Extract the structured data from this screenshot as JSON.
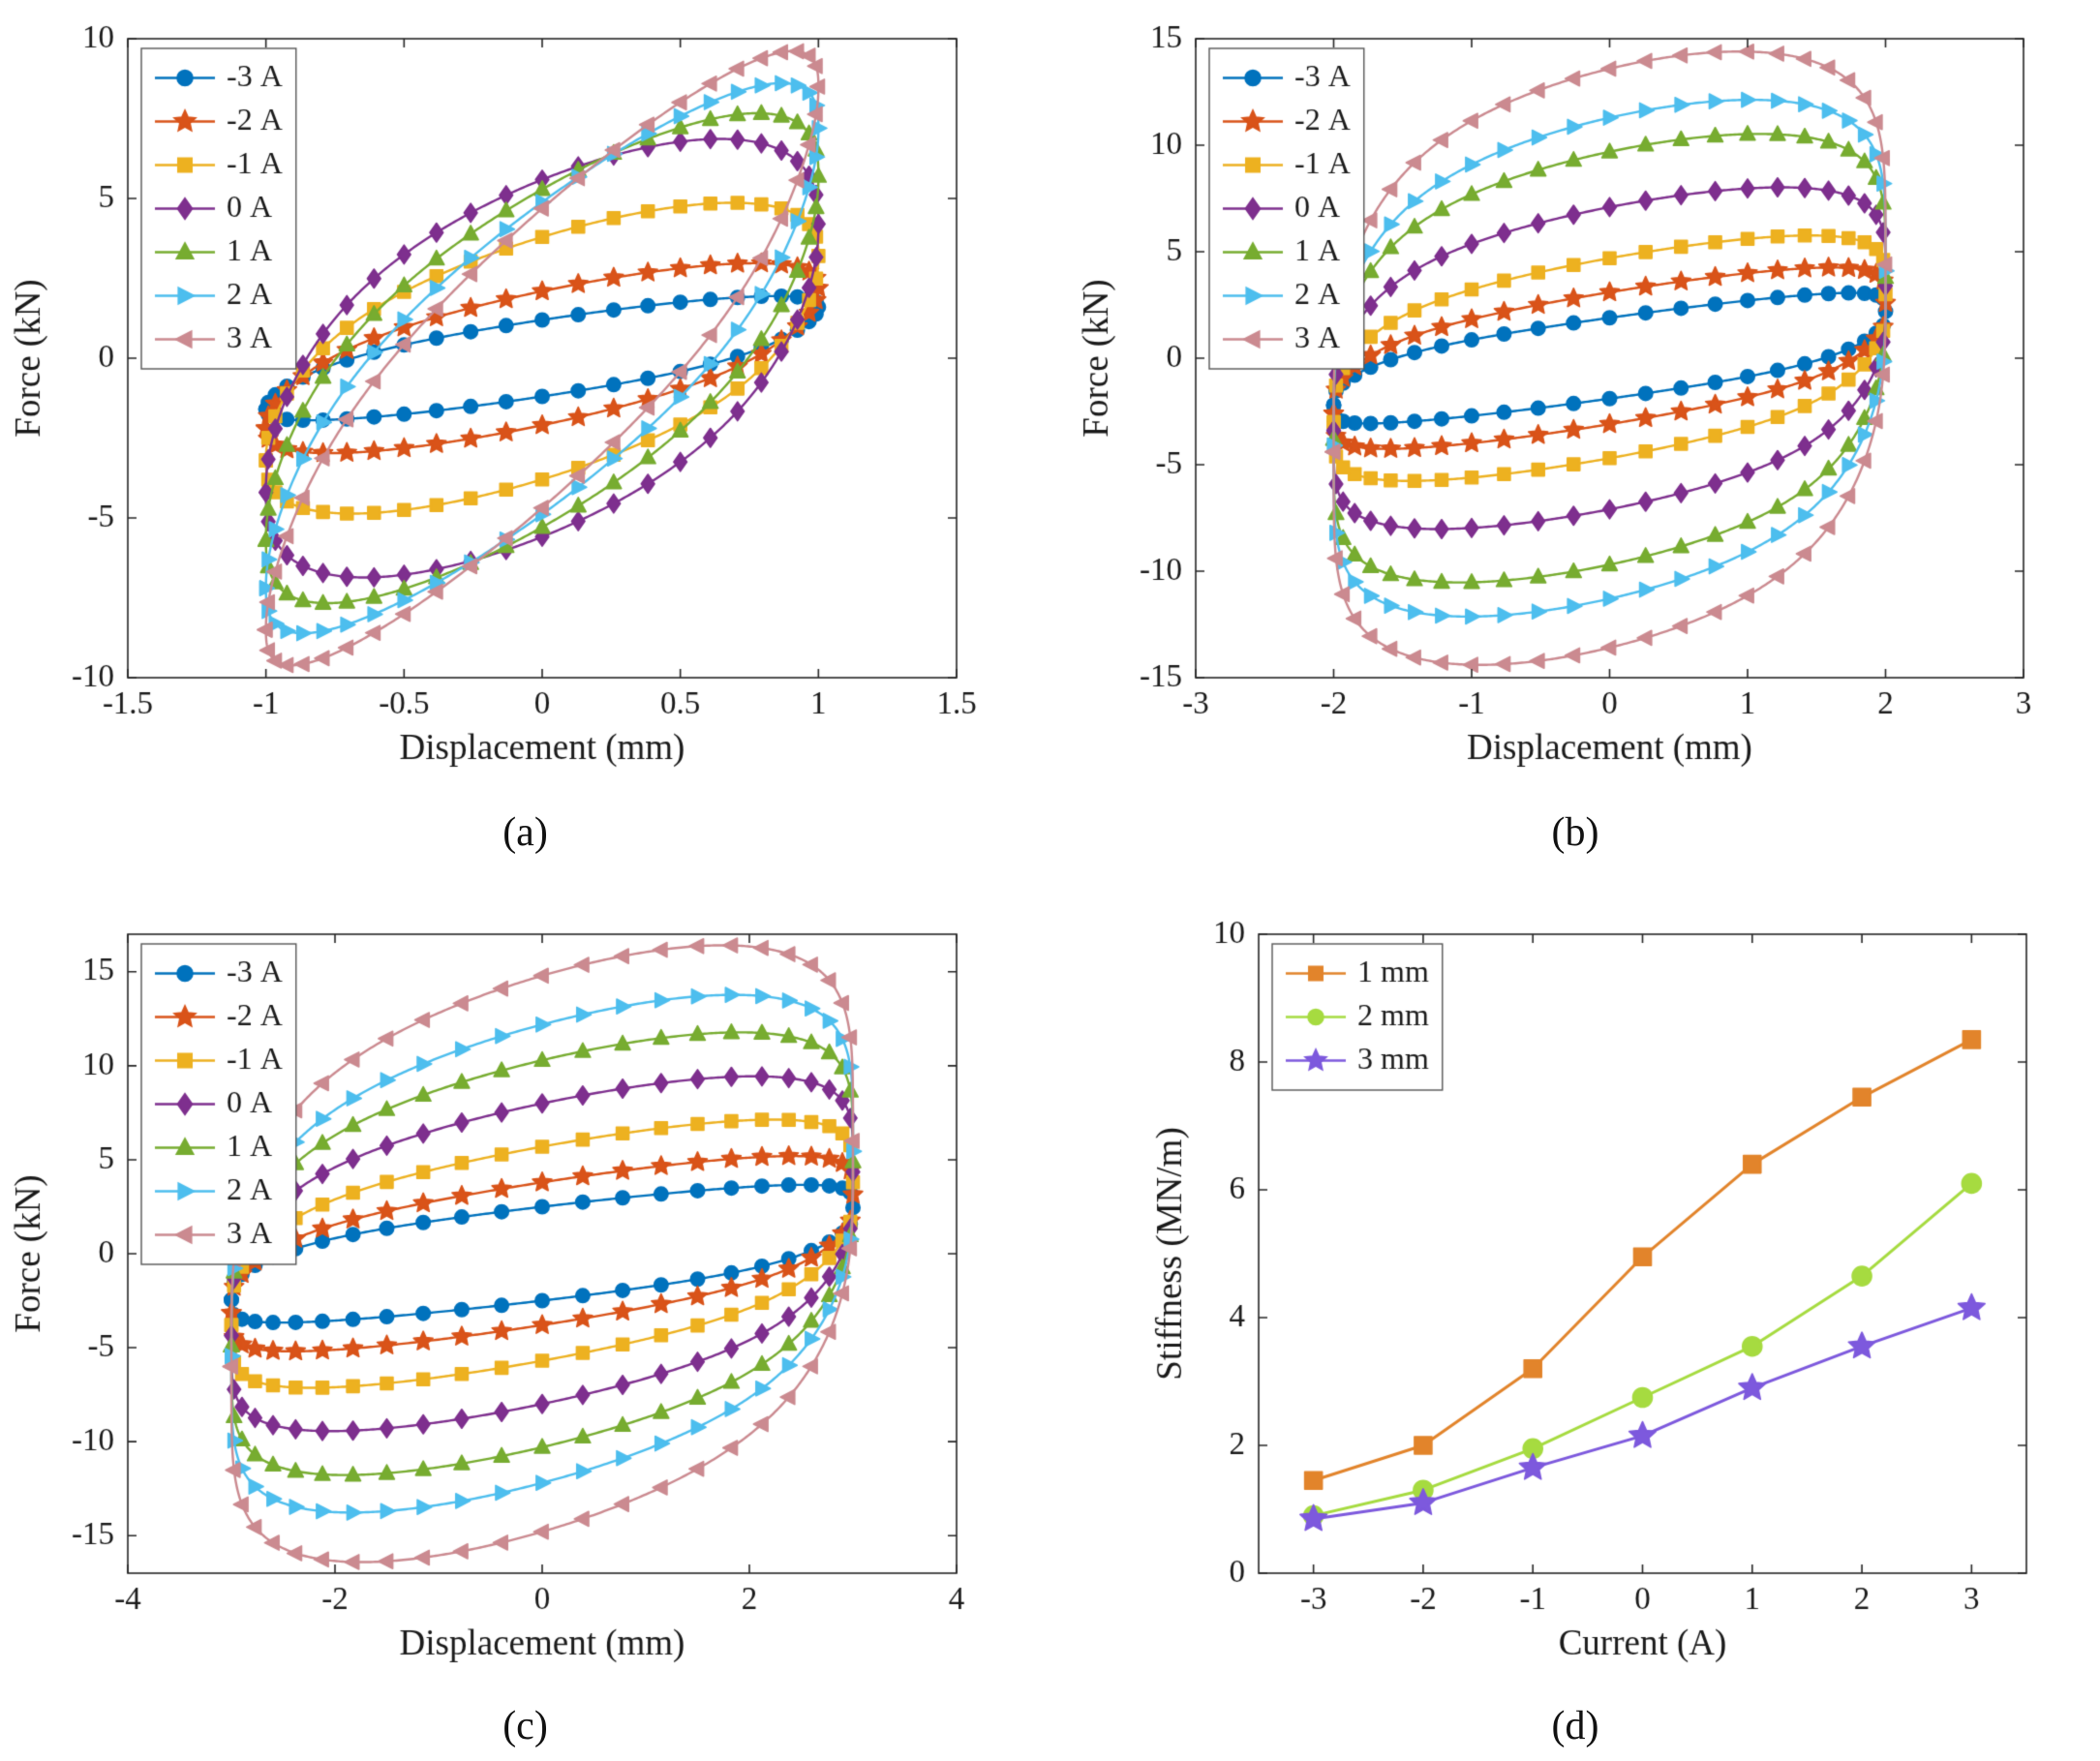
{
  "captions": {
    "a": "(a)",
    "b": "(b)",
    "c": "(c)",
    "d": "(d)"
  },
  "chart_data": [
    {
      "id": "a",
      "type": "line",
      "subtype": "force-displacement-hysteresis-loops",
      "panel_letter": "(a)",
      "xlabel": "Displacement (mm)",
      "ylabel": "Force (kN)",
      "xlim": [
        -1.5,
        1.5
      ],
      "ylim": [
        -10,
        10
      ],
      "xticks": [
        -1.5,
        -1,
        -0.5,
        0,
        0.5,
        1,
        1.5
      ],
      "xtick_labels": [
        "-1.5",
        "-1",
        "-0.5",
        "0",
        "0.5",
        "1",
        "1.5"
      ],
      "yticks": [
        -10,
        -5,
        0,
        5,
        10
      ],
      "ytick_labels": [
        "-10",
        "-5",
        "0",
        "5",
        "10"
      ],
      "grid": false,
      "legend_location": "northwest",
      "displacement_amplitude_mm": 1,
      "marker_size": 7.2,
      "line_width": 2.4,
      "series": [
        {
          "label": "-3 A",
          "current_A": -3,
          "color": "#0072BD",
          "marker": "circle",
          "max_force_kN": 1.8,
          "loop": {
            "amplitude": 1,
            "k": 1.3,
            "fz": 0.3,
            "fc": 0.9,
            "w": 0.18,
            "p": 0.4
          }
        },
        {
          "label": "-2 A",
          "current_A": -2,
          "color": "#D95319",
          "marker": "star",
          "max_force_kN": 2.6,
          "loop": {
            "amplitude": 1,
            "k": 1.8,
            "fz": 0.4,
            "fc": 1.7,
            "w": 0.18,
            "p": 0.4
          }
        },
        {
          "label": "-1 A",
          "current_A": -1,
          "color": "#EDB120",
          "marker": "square",
          "max_force_kN": 4.4,
          "loop": {
            "amplitude": 1,
            "k": 2.6,
            "fz": 0.6,
            "fc": 3.2,
            "w": 0.18,
            "p": 0.4
          }
        },
        {
          "label": "0 A",
          "current_A": 0,
          "color": "#7E2F8E",
          "marker": "diamond",
          "max_force_kN": 5.9,
          "loop": {
            "amplitude": 1,
            "k": 3.4,
            "fz": 0.8,
            "fc": 4.8,
            "w": 0.2,
            "p": 0.4
          }
        },
        {
          "label": "1 A",
          "current_A": 1,
          "color": "#77AC30",
          "marker": "triangle-up",
          "max_force_kN": 7.0,
          "loop": {
            "amplitude": 1,
            "k": 4.8,
            "fz": 0.9,
            "fc": 4.4,
            "w": 0.2,
            "p": 0.4
          }
        },
        {
          "label": "2 A",
          "current_A": 2,
          "color": "#4DBEEE",
          "marker": "triangle-right",
          "max_force_kN": 8.2,
          "loop": {
            "amplitude": 1,
            "k": 6.2,
            "fz": 1.0,
            "fc": 3.9,
            "w": 0.2,
            "p": 0.4
          }
        },
        {
          "label": "3 A",
          "current_A": 3,
          "color": "#CB8A90",
          "marker": "triangle-left",
          "max_force_kN": 9.2,
          "loop": {
            "amplitude": 1,
            "k": 7.4,
            "fz": 1.1,
            "fc": 3.6,
            "w": 0.2,
            "p": 0.4
          }
        }
      ]
    },
    {
      "id": "b",
      "type": "line",
      "subtype": "force-displacement-hysteresis-loops",
      "panel_letter": "(b)",
      "xlabel": "Displacement (mm)",
      "ylabel": "Force (kN)",
      "xlim": [
        -3,
        3
      ],
      "ylim": [
        -15,
        15
      ],
      "xticks": [
        -3,
        -2,
        -1,
        0,
        1,
        2,
        3
      ],
      "xtick_labels": [
        "-3",
        "-2",
        "-1",
        "0",
        "1",
        "2",
        "3"
      ],
      "yticks": [
        -15,
        -10,
        -5,
        0,
        5,
        10,
        15
      ],
      "ytick_labels": [
        "-15",
        "-10",
        "-5",
        "0",
        "5",
        "10",
        "15"
      ],
      "grid": false,
      "legend_location": "northwest",
      "displacement_amplitude_mm": 2,
      "marker_size": 7.2,
      "line_width": 2.4,
      "series": [
        {
          "label": "-3 A",
          "current_A": -3,
          "color": "#0072BD",
          "marker": "circle",
          "max_force_kN": 2.3,
          "loop": {
            "amplitude": 2,
            "k": 0.9,
            "fz": 0.4,
            "fc": 1.5,
            "w": 0.35,
            "p": 0.22
          }
        },
        {
          "label": "-2 A",
          "current_A": -2,
          "color": "#D95319",
          "marker": "star",
          "max_force_kN": 3.3,
          "loop": {
            "amplitude": 2,
            "k": 1.05,
            "fz": 0.5,
            "fc": 2.6,
            "w": 0.35,
            "p": 0.22
          }
        },
        {
          "label": "-1 A",
          "current_A": -1,
          "color": "#EDB120",
          "marker": "square",
          "max_force_kN": 4.8,
          "loop": {
            "amplitude": 2,
            "k": 1.15,
            "fz": 0.7,
            "fc": 4.0,
            "w": 0.35,
            "p": 0.22
          }
        },
        {
          "label": "0 A",
          "current_A": 0,
          "color": "#7E2F8E",
          "marker": "diamond",
          "max_force_kN": 7.2,
          "loop": {
            "amplitude": 2,
            "k": 1.25,
            "fz": 0.9,
            "fc": 6.2,
            "w": 0.35,
            "p": 0.22
          }
        },
        {
          "label": "1 A",
          "current_A": 1,
          "color": "#77AC30",
          "marker": "triangle-up",
          "max_force_kN": 9.8,
          "loop": {
            "amplitude": 2,
            "k": 1.35,
            "fz": 1.1,
            "fc": 8.6,
            "w": 0.35,
            "p": 0.22
          }
        },
        {
          "label": "2 A",
          "current_A": 2,
          "color": "#4DBEEE",
          "marker": "triangle-right",
          "max_force_kN": 11.3,
          "loop": {
            "amplitude": 2,
            "k": 1.45,
            "fz": 1.2,
            "fc": 10.1,
            "w": 0.35,
            "p": 0.22
          }
        },
        {
          "label": "3 A",
          "current_A": 3,
          "color": "#CB8A90",
          "marker": "triangle-left",
          "max_force_kN": 13.6,
          "loop": {
            "amplitude": 2,
            "k": 1.55,
            "fz": 1.3,
            "fc": 12.3,
            "w": 0.35,
            "p": 0.22
          }
        }
      ]
    },
    {
      "id": "c",
      "type": "line",
      "subtype": "force-displacement-hysteresis-loops",
      "panel_letter": "(c)",
      "xlabel": "Displacement (mm)",
      "ylabel": "Force (kN)",
      "xlim": [
        -4,
        4
      ],
      "ylim": [
        -17,
        17
      ],
      "xticks": [
        -4,
        -2,
        0,
        2,
        4
      ],
      "xtick_labels": [
        "-4",
        "-2",
        "0",
        "2",
        "4"
      ],
      "yticks": [
        -15,
        -10,
        -5,
        0,
        5,
        10,
        15
      ],
      "ytick_labels": [
        "-15",
        "-10",
        "-5",
        "0",
        "5",
        "10",
        "15"
      ],
      "grid": false,
      "legend_location": "northwest",
      "displacement_amplitude_mm": 3,
      "marker_size": 7.2,
      "line_width": 2.4,
      "series": [
        {
          "label": "-3 A",
          "current_A": -3,
          "color": "#0072BD",
          "marker": "circle",
          "max_force_kN": 2.6,
          "loop": {
            "amplitude": 3,
            "k": 0.65,
            "fz": 0.5,
            "fc": 2.0,
            "w": 0.5,
            "p": 0.22
          }
        },
        {
          "label": "-2 A",
          "current_A": -2,
          "color": "#D95319",
          "marker": "star",
          "max_force_kN": 3.9,
          "loop": {
            "amplitude": 3,
            "k": 0.85,
            "fz": 0.6,
            "fc": 3.2,
            "w": 0.5,
            "p": 0.22
          }
        },
        {
          "label": "-1 A",
          "current_A": -1,
          "color": "#EDB120",
          "marker": "square",
          "max_force_kN": 5.7,
          "loop": {
            "amplitude": 3,
            "k": 1.0,
            "fz": 0.8,
            "fc": 4.9,
            "w": 0.5,
            "p": 0.22
          }
        },
        {
          "label": "0 A",
          "current_A": 0,
          "color": "#7E2F8E",
          "marker": "diamond",
          "max_force_kN": 8.0,
          "loop": {
            "amplitude": 3,
            "k": 1.15,
            "fz": 0.9,
            "fc": 7.1,
            "w": 0.5,
            "p": 0.22
          }
        },
        {
          "label": "1 A",
          "current_A": 1,
          "color": "#77AC30",
          "marker": "triangle-up",
          "max_force_kN": 10.3,
          "loop": {
            "amplitude": 3,
            "k": 1.3,
            "fz": 1.0,
            "fc": 9.3,
            "w": 0.5,
            "p": 0.22
          }
        },
        {
          "label": "2 A",
          "current_A": 2,
          "color": "#4DBEEE",
          "marker": "triangle-right",
          "max_force_kN": 12.2,
          "loop": {
            "amplitude": 3,
            "k": 1.45,
            "fz": 1.1,
            "fc": 11.1,
            "w": 0.5,
            "p": 0.22
          }
        },
        {
          "label": "3 A",
          "current_A": 3,
          "color": "#CB8A90",
          "marker": "triangle-left",
          "max_force_kN": 14.8,
          "loop": {
            "amplitude": 3,
            "k": 1.6,
            "fz": 1.2,
            "fc": 13.6,
            "w": 0.5,
            "p": 0.22
          }
        }
      ]
    },
    {
      "id": "d",
      "type": "line",
      "subtype": "stiffness-vs-current",
      "panel_letter": "(d)",
      "xlabel": "Current (A)",
      "ylabel": "Stiffness (MN/m)",
      "xlim": [
        -3.5,
        3.5
      ],
      "ylim": [
        0,
        10
      ],
      "xticks": [
        -3,
        -2,
        -1,
        0,
        1,
        2,
        3
      ],
      "xtick_labels": [
        "-3",
        "-2",
        "-1",
        "0",
        "1",
        "2",
        "3"
      ],
      "yticks": [
        0,
        2,
        4,
        6,
        8,
        10
      ],
      "ytick_labels": [
        "0",
        "2",
        "4",
        "6",
        "8",
        "10"
      ],
      "grid": false,
      "legend_location": "northwest",
      "marker_size": 10,
      "line_width": 3,
      "x": [
        -3,
        -2,
        -1,
        0,
        1,
        2,
        3
      ],
      "series": [
        {
          "label": "1 mm",
          "color": "#E2842B",
          "marker": "square",
          "values": [
            1.45,
            2.0,
            3.2,
            4.95,
            6.4,
            7.45,
            8.35
          ]
        },
        {
          "label": "2 mm",
          "color": "#A6DB40",
          "marker": "circle",
          "values": [
            0.9,
            1.3,
            1.95,
            2.75,
            3.55,
            4.65,
            6.1
          ]
        },
        {
          "label": "3 mm",
          "color": "#7D59DD",
          "marker": "star",
          "values": [
            0.85,
            1.1,
            1.65,
            2.15,
            2.9,
            3.55,
            4.15
          ]
        }
      ]
    }
  ]
}
